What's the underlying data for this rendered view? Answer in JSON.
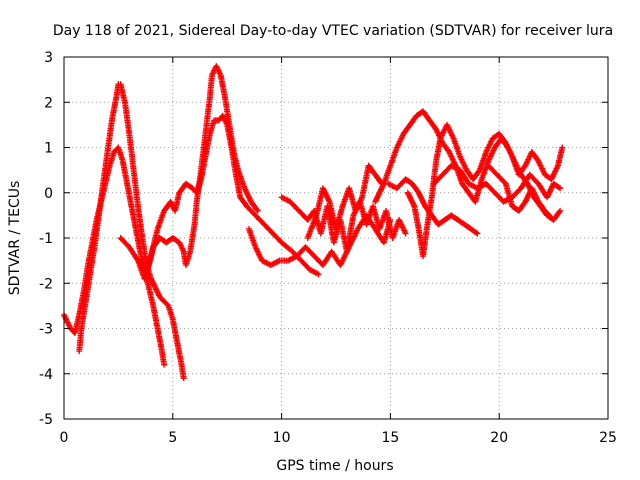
{
  "chart_data": {
    "type": "scatter",
    "title": "Day 118 of 2021, Sidereal Day-to-day VTEC variation (SDTVAR) for receiver lura",
    "xlabel": "GPS time / hours",
    "ylabel": "SDTVAR / TECUs",
    "xlim": [
      0,
      25
    ],
    "ylim": [
      -5,
      3
    ],
    "xticks": [
      0,
      5,
      10,
      15,
      20,
      25
    ],
    "yticks": [
      -5,
      -4,
      -3,
      -2,
      -1,
      0,
      1,
      2,
      3
    ],
    "grid": true,
    "marker": "+",
    "series": [
      {
        "name": "SDTVAR",
        "color": "#ff0000",
        "tracks": [
          [
            [
              0.0,
              -2.7
            ],
            [
              0.3,
              -3.0
            ],
            [
              0.5,
              -3.1
            ],
            [
              0.7,
              -2.7
            ],
            [
              0.9,
              -2.2
            ],
            [
              1.0,
              -1.9
            ],
            [
              1.1,
              -1.6
            ],
            [
              1.3,
              -1.1
            ],
            [
              1.5,
              -0.6
            ],
            [
              1.7,
              -0.2
            ],
            [
              1.9,
              0.2
            ],
            [
              2.1,
              0.6
            ],
            [
              2.3,
              0.9
            ],
            [
              2.5,
              1.0
            ],
            [
              2.7,
              0.7
            ],
            [
              2.9,
              0.2
            ],
            [
              3.1,
              -0.3
            ],
            [
              3.3,
              -0.8
            ],
            [
              3.5,
              -1.3
            ],
            [
              3.7,
              -1.7
            ],
            [
              3.9,
              -2.1
            ],
            [
              4.1,
              -2.5
            ],
            [
              4.3,
              -3.0
            ],
            [
              4.5,
              -3.5
            ],
            [
              4.6,
              -3.8
            ]
          ],
          [
            [
              0.7,
              -3.5
            ],
            [
              0.8,
              -3.0
            ],
            [
              1.0,
              -2.4
            ],
            [
              1.2,
              -1.8
            ],
            [
              1.4,
              -1.2
            ],
            [
              1.6,
              -0.5
            ],
            [
              1.8,
              0.2
            ],
            [
              2.0,
              0.9
            ],
            [
              2.2,
              1.6
            ],
            [
              2.4,
              2.1
            ],
            [
              2.5,
              2.4
            ],
            [
              2.6,
              2.4
            ],
            [
              2.8,
              2.0
            ],
            [
              3.0,
              1.3
            ],
            [
              3.2,
              0.5
            ],
            [
              3.4,
              -0.3
            ],
            [
              3.6,
              -1.0
            ],
            [
              3.8,
              -1.6
            ],
            [
              4.0,
              -1.9
            ],
            [
              4.2,
              -2.1
            ],
            [
              4.4,
              -2.3
            ],
            [
              4.6,
              -2.4
            ],
            [
              4.8,
              -2.5
            ],
            [
              5.0,
              -2.8
            ],
            [
              5.2,
              -3.3
            ],
            [
              5.4,
              -3.8
            ],
            [
              5.5,
              -4.1
            ]
          ],
          [
            [
              2.6,
              -1.0
            ],
            [
              3.0,
              -1.2
            ],
            [
              3.4,
              -1.5
            ],
            [
              3.7,
              -1.9
            ],
            [
              3.9,
              -1.6
            ],
            [
              4.1,
              -1.2
            ],
            [
              4.4,
              -1.0
            ],
            [
              4.7,
              -1.1
            ],
            [
              5.0,
              -1.0
            ],
            [
              5.3,
              -1.1
            ],
            [
              5.5,
              -1.3
            ],
            [
              5.6,
              -1.6
            ],
            [
              5.8,
              -1.3
            ],
            [
              6.0,
              -0.7
            ],
            [
              6.1,
              -0.2
            ],
            [
              6.3,
              0.5
            ],
            [
              6.5,
              1.3
            ],
            [
              6.7,
              2.1
            ],
            [
              6.8,
              2.6
            ],
            [
              7.0,
              2.8
            ],
            [
              7.2,
              2.6
            ],
            [
              7.4,
              2.1
            ],
            [
              7.6,
              1.5
            ],
            [
              7.8,
              0.9
            ],
            [
              8.0,
              0.5
            ],
            [
              8.3,
              0.1
            ],
            [
              8.6,
              -0.2
            ],
            [
              8.9,
              -0.4
            ]
          ],
          [
            [
              3.7,
              -1.9
            ],
            [
              4.0,
              -1.4
            ],
            [
              4.3,
              -0.8
            ],
            [
              4.6,
              -0.4
            ],
            [
              4.9,
              -0.2
            ],
            [
              5.1,
              -0.4
            ],
            [
              5.3,
              0.0
            ],
            [
              5.6,
              0.2
            ],
            [
              5.9,
              0.1
            ],
            [
              6.1,
              0.0
            ],
            [
              6.3,
              0.3
            ],
            [
              6.5,
              0.8
            ],
            [
              6.7,
              1.3
            ],
            [
              6.9,
              1.6
            ],
            [
              7.1,
              1.6
            ],
            [
              7.3,
              1.7
            ],
            [
              7.5,
              1.5
            ],
            [
              7.7,
              1.0
            ],
            [
              7.9,
              0.4
            ],
            [
              8.1,
              -0.1
            ],
            [
              8.4,
              -0.3
            ],
            [
              8.8,
              -0.5
            ],
            [
              9.2,
              -0.7
            ],
            [
              9.6,
              -0.9
            ],
            [
              10.0,
              -1.1
            ],
            [
              10.5,
              -1.3
            ],
            [
              10.9,
              -1.5
            ],
            [
              11.3,
              -1.7
            ],
            [
              11.7,
              -1.8
            ]
          ],
          [
            [
              8.5,
              -0.8
            ],
            [
              8.8,
              -1.2
            ],
            [
              9.1,
              -1.5
            ],
            [
              9.5,
              -1.6
            ],
            [
              9.9,
              -1.5
            ],
            [
              10.3,
              -1.5
            ],
            [
              10.7,
              -1.4
            ],
            [
              11.1,
              -1.2
            ],
            [
              11.5,
              -1.4
            ],
            [
              11.9,
              -1.6
            ],
            [
              12.3,
              -1.3
            ],
            [
              12.7,
              -1.6
            ],
            [
              13.1,
              -1.2
            ],
            [
              13.5,
              -0.8
            ],
            [
              13.9,
              -0.5
            ],
            [
              14.3,
              -0.8
            ],
            [
              14.7,
              -1.1
            ],
            [
              15.0,
              -0.6
            ]
          ],
          [
            [
              10.0,
              -0.1
            ],
            [
              10.4,
              -0.2
            ],
            [
              10.8,
              -0.4
            ],
            [
              11.2,
              -0.6
            ],
            [
              11.5,
              -0.4
            ],
            [
              11.8,
              -0.9
            ],
            [
              12.1,
              -0.3
            ],
            [
              12.4,
              -1.1
            ],
            [
              12.7,
              -0.6
            ],
            [
              13.0,
              -1.3
            ],
            [
              13.3,
              -0.5
            ],
            [
              13.6,
              -0.2
            ],
            [
              13.9,
              -0.7
            ],
            [
              14.2,
              -0.3
            ],
            [
              14.5,
              -0.8
            ],
            [
              14.8,
              -0.4
            ],
            [
              15.1,
              -1.0
            ],
            [
              15.4,
              -0.6
            ],
            [
              15.7,
              -0.9
            ]
          ],
          [
            [
              11.2,
              -1.0
            ],
            [
              11.6,
              -0.5
            ],
            [
              11.9,
              0.1
            ],
            [
              12.2,
              -0.2
            ],
            [
              12.5,
              -0.8
            ],
            [
              12.8,
              -0.3
            ],
            [
              13.1,
              0.1
            ],
            [
              13.4,
              -0.4
            ],
            [
              13.7,
              -0.1
            ],
            [
              14.0,
              0.6
            ],
            [
              14.3,
              0.4
            ],
            [
              14.6,
              0.2
            ]
          ],
          [
            [
              14.3,
              -0.2
            ],
            [
              14.7,
              0.2
            ],
            [
              15.0,
              0.6
            ],
            [
              15.3,
              1.0
            ],
            [
              15.6,
              1.3
            ],
            [
              15.9,
              1.5
            ],
            [
              16.2,
              1.7
            ],
            [
              16.5,
              1.8
            ],
            [
              16.8,
              1.6
            ],
            [
              17.1,
              1.4
            ],
            [
              17.4,
              1.1
            ],
            [
              17.7,
              0.9
            ],
            [
              18.0,
              0.6
            ],
            [
              18.3,
              0.2
            ],
            [
              18.6,
              0.0
            ],
            [
              18.9,
              -0.2
            ],
            [
              19.2,
              0.3
            ],
            [
              19.5,
              0.7
            ],
            [
              19.8,
              1.0
            ],
            [
              20.1,
              1.2
            ],
            [
              20.4,
              1.0
            ],
            [
              20.7,
              0.7
            ],
            [
              21.0,
              0.4
            ],
            [
              21.3,
              0.2
            ],
            [
              21.6,
              -0.1
            ],
            [
              21.9,
              -0.3
            ],
            [
              22.2,
              -0.5
            ],
            [
              22.5,
              -0.6
            ],
            [
              22.8,
              -0.4
            ]
          ],
          [
            [
              14.9,
              0.2
            ],
            [
              15.3,
              0.1
            ],
            [
              15.7,
              0.3
            ],
            [
              16.0,
              0.2
            ],
            [
              16.3,
              0.0
            ],
            [
              16.6,
              -0.3
            ],
            [
              16.9,
              -0.5
            ],
            [
              17.2,
              -0.7
            ],
            [
              17.5,
              -0.6
            ],
            [
              17.8,
              -0.5
            ],
            [
              18.1,
              -0.6
            ],
            [
              18.4,
              -0.7
            ],
            [
              18.7,
              -0.8
            ],
            [
              19.0,
              -0.9
            ]
          ],
          [
            [
              15.8,
              0.0
            ],
            [
              16.1,
              -0.3
            ],
            [
              16.3,
              -0.8
            ],
            [
              16.5,
              -1.4
            ],
            [
              16.7,
              -0.7
            ],
            [
              16.9,
              -0.1
            ],
            [
              17.1,
              0.7
            ],
            [
              17.3,
              1.2
            ],
            [
              17.6,
              1.5
            ],
            [
              17.9,
              1.2
            ],
            [
              18.2,
              0.8
            ],
            [
              18.5,
              0.5
            ],
            [
              18.8,
              0.3
            ],
            [
              19.1,
              0.5
            ],
            [
              19.4,
              0.9
            ],
            [
              19.7,
              1.2
            ],
            [
              20.0,
              1.3
            ],
            [
              20.3,
              1.1
            ],
            [
              20.6,
              0.8
            ],
            [
              20.9,
              0.4
            ],
            [
              21.2,
              0.6
            ],
            [
              21.5,
              0.9
            ],
            [
              21.8,
              0.7
            ],
            [
              22.1,
              0.4
            ],
            [
              22.4,
              0.3
            ],
            [
              22.7,
              0.6
            ],
            [
              22.9,
              1.0
            ]
          ],
          [
            [
              17.0,
              0.2
            ],
            [
              17.4,
              0.4
            ],
            [
              17.8,
              0.6
            ],
            [
              18.2,
              0.5
            ],
            [
              18.6,
              0.2
            ],
            [
              19.0,
              0.1
            ],
            [
              19.4,
              0.2
            ],
            [
              19.8,
              0.0
            ],
            [
              20.2,
              -0.2
            ],
            [
              20.6,
              -0.1
            ],
            [
              21.0,
              0.1
            ],
            [
              21.4,
              0.4
            ],
            [
              21.8,
              0.2
            ],
            [
              22.2,
              -0.1
            ],
            [
              22.5,
              0.2
            ],
            [
              22.8,
              0.1
            ]
          ],
          [
            [
              19.5,
              0.6
            ],
            [
              19.9,
              0.4
            ],
            [
              20.3,
              0.2
            ],
            [
              20.6,
              -0.3
            ],
            [
              20.9,
              -0.4
            ],
            [
              21.2,
              -0.2
            ],
            [
              21.5,
              0.1
            ],
            [
              21.8,
              -0.2
            ],
            [
              22.1,
              -0.4
            ],
            [
              22.3,
              -0.5
            ]
          ]
        ]
      }
    ]
  }
}
